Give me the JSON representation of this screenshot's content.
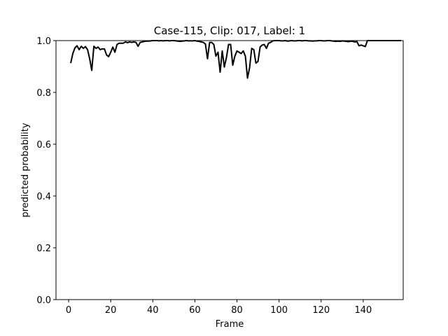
{
  "chart_data": {
    "type": "line",
    "title": "Case-115, Clip: 017, Label: 1",
    "xlabel": "Frame",
    "ylabel": "predicted probability",
    "xlim": [
      -6,
      159
    ],
    "ylim": [
      0.0,
      1.0
    ],
    "xticks": [
      0,
      20,
      40,
      60,
      80,
      100,
      120,
      140
    ],
    "yticks": [
      0.0,
      0.2,
      0.4,
      0.6,
      0.8,
      1.0
    ],
    "xtick_labels": [
      "0",
      "20",
      "40",
      "60",
      "80",
      "100",
      "120",
      "140"
    ],
    "ytick_labels": [
      "0.0",
      "0.2",
      "0.4",
      "0.6",
      "0.8",
      "1.0"
    ],
    "grid": false,
    "series": [
      {
        "color": "#000000",
        "x": [
          1,
          2,
          3,
          4,
          5,
          6,
          7,
          8,
          9,
          10,
          11,
          12,
          13,
          14,
          15,
          16,
          17,
          18,
          19,
          20,
          21,
          22,
          23,
          24,
          25,
          26,
          27,
          28,
          29,
          30,
          31,
          32,
          33,
          34,
          35,
          36,
          37,
          38,
          39,
          40,
          41,
          42,
          43,
          44,
          45,
          46,
          47,
          48,
          49,
          50,
          51,
          52,
          53,
          54,
          55,
          56,
          57,
          58,
          59,
          60,
          61,
          62,
          63,
          64,
          65,
          66,
          67,
          68,
          69,
          70,
          71,
          72,
          73,
          74,
          75,
          76,
          77,
          78,
          79,
          80,
          81,
          82,
          83,
          84,
          85,
          86,
          87,
          88,
          89,
          90,
          91,
          92,
          93,
          94,
          95,
          96,
          97,
          98,
          99,
          100,
          101,
          102,
          103,
          104,
          105,
          106,
          107,
          108,
          109,
          110,
          111,
          112,
          113,
          114,
          115,
          116,
          117,
          118,
          119,
          120,
          121,
          122,
          123,
          124,
          125,
          126,
          127,
          128,
          129,
          130,
          131,
          132,
          133,
          134,
          135,
          136,
          137,
          138,
          139,
          140,
          141,
          142,
          143,
          144,
          145,
          146,
          147,
          148,
          149,
          150,
          151,
          152,
          153,
          154,
          155,
          156,
          157,
          158
        ],
        "y": [
          0.913,
          0.95,
          0.972,
          0.98,
          0.965,
          0.978,
          0.97,
          0.977,
          0.965,
          0.93,
          0.885,
          0.978,
          0.97,
          0.975,
          0.965,
          0.968,
          0.968,
          0.945,
          0.938,
          0.955,
          0.975,
          0.955,
          0.985,
          0.99,
          0.99,
          0.99,
          0.995,
          0.992,
          0.995,
          0.993,
          0.995,
          0.993,
          0.978,
          0.993,
          0.995,
          0.997,
          0.998,
          0.998,
          0.999,
          1.0,
          1.0,
          1.0,
          0.999,
          1.0,
          0.999,
          1.0,
          1.0,
          0.999,
          1.0,
          1.0,
          0.999,
          0.998,
          0.997,
          0.998,
          0.999,
          1.0,
          0.999,
          0.999,
          0.999,
          1.0,
          0.998,
          0.997,
          0.995,
          0.993,
          0.987,
          0.93,
          0.993,
          0.993,
          0.985,
          0.94,
          0.955,
          0.878,
          0.96,
          0.898,
          0.935,
          0.985,
          0.985,
          0.905,
          0.94,
          0.96,
          0.955,
          0.95,
          0.96,
          0.94,
          0.855,
          0.895,
          0.97,
          0.965,
          0.913,
          0.92,
          0.975,
          0.983,
          0.985,
          0.97,
          0.99,
          0.993,
          0.999,
          1.0,
          1.0,
          1.0,
          0.999,
          0.999,
          1.0,
          0.998,
          0.999,
          1.0,
          0.999,
          0.999,
          1.0,
          1.0,
          0.999,
          1.0,
          1.0,
          0.999,
          0.999,
          0.998,
          0.999,
          0.999,
          1.0,
          1.0,
          0.999,
          0.999,
          1.0,
          1.0,
          0.999,
          0.998,
          0.997,
          0.998,
          0.997,
          0.999,
          0.998,
          0.997,
          0.996,
          0.998,
          0.997,
          0.995,
          0.996,
          0.98,
          0.983,
          0.98,
          0.977,
          1.0,
          1.0,
          1.0,
          1.0,
          1.0,
          1.0,
          1.0,
          1.0,
          1.0,
          1.0,
          1.0,
          1.0,
          1.0,
          1.0,
          1.0,
          1.0,
          1.0
        ]
      }
    ]
  }
}
